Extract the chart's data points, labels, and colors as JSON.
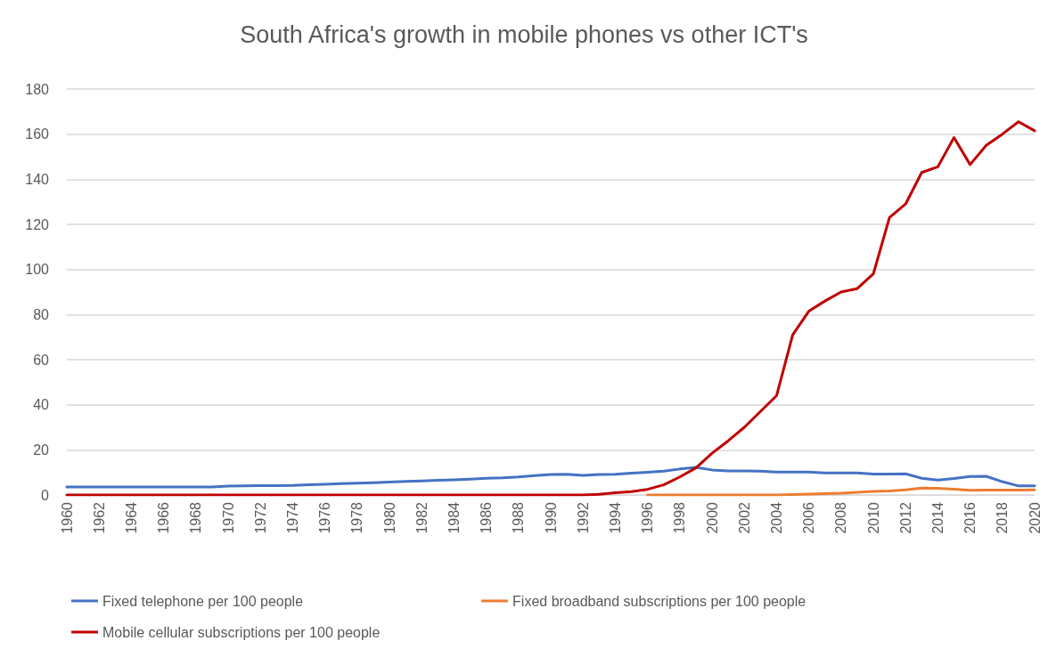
{
  "chart_data": {
    "type": "line",
    "title": "South Africa's growth in mobile phones vs other ICT's",
    "categories": [
      "1960",
      null,
      "1962",
      null,
      "1964",
      null,
      "1966",
      null,
      "1968",
      null,
      "1970",
      null,
      "1972",
      null,
      "1974",
      null,
      "1976",
      null,
      "1978",
      null,
      "1980",
      null,
      "1982",
      null,
      "1984",
      null,
      "1986",
      null,
      "1988",
      null,
      "1990",
      null,
      "1992",
      null,
      "1994",
      null,
      "1996",
      null,
      "1998",
      null,
      "2000",
      null,
      "2002",
      null,
      "2004",
      null,
      "2006",
      null,
      "2008",
      null,
      "2010",
      null,
      "2012",
      null,
      "2014",
      null,
      "2016",
      null,
      "2018",
      null,
      "2020"
    ],
    "series": [
      {
        "name": "Fixed telephone per 100 people",
        "color": "#4472c4",
        "values": [
          3.6,
          3.6,
          3.6,
          3.6,
          3.6,
          3.6,
          3.6,
          3.6,
          3.6,
          3.6,
          3.9,
          4.0,
          4.1,
          4.1,
          4.2,
          4.5,
          4.7,
          5.0,
          5.2,
          5.4,
          5.7,
          6.0,
          6.2,
          6.5,
          6.7,
          7.0,
          7.4,
          7.6,
          8.0,
          8.6,
          9.1,
          9.2,
          8.7,
          9.1,
          9.2,
          9.7,
          10.1,
          10.6,
          11.5,
          12.2,
          11.1,
          10.7,
          10.7,
          10.6,
          10.2,
          10.2,
          10.2,
          9.8,
          9.8,
          9.8,
          9.3,
          9.3,
          9.4,
          7.4,
          6.6,
          7.3,
          8.2,
          8.3,
          5.9,
          4.0,
          4.0
        ]
      },
      {
        "name": "Fixed broadband subscriptions per 100 people",
        "color": "#ed7d31",
        "values": [
          null,
          null,
          null,
          null,
          null,
          null,
          null,
          null,
          null,
          null,
          null,
          null,
          null,
          null,
          null,
          null,
          null,
          null,
          null,
          null,
          null,
          null,
          null,
          null,
          null,
          null,
          null,
          null,
          null,
          null,
          null,
          null,
          null,
          null,
          null,
          null,
          0,
          0,
          0,
          0,
          0,
          0,
          0,
          0,
          0,
          0.2,
          0.4,
          0.6,
          0.8,
          1.2,
          1.6,
          1.8,
          2.3,
          3.1,
          3.0,
          2.6,
          2.1,
          2.2,
          2.2,
          2.2,
          2.3
        ]
      },
      {
        "name": "Mobile cellular subscriptions per 100 people",
        "color": "#c00000",
        "values": [
          0,
          0,
          0,
          0,
          0,
          0,
          0,
          0,
          0,
          0,
          0,
          0,
          0,
          0,
          0,
          0,
          0,
          0,
          0,
          0,
          0,
          0,
          0,
          0,
          0,
          0,
          0,
          0,
          0,
          0,
          0,
          0,
          0,
          0.3,
          1,
          1.5,
          2.5,
          4.5,
          8,
          12,
          18.5,
          24,
          30,
          37,
          44,
          71,
          81.5,
          86,
          90,
          91.5,
          98,
          123,
          129,
          143,
          145.5,
          158.5,
          146.5,
          155,
          160,
          165.5,
          161.5
        ]
      }
    ],
    "ylim": [
      0,
      180
    ],
    "yticks": [
      0,
      20,
      40,
      60,
      80,
      100,
      120,
      140,
      160,
      180
    ],
    "grid": "y",
    "legend": "bottom",
    "marker": "none",
    "line_style": "solid"
  }
}
